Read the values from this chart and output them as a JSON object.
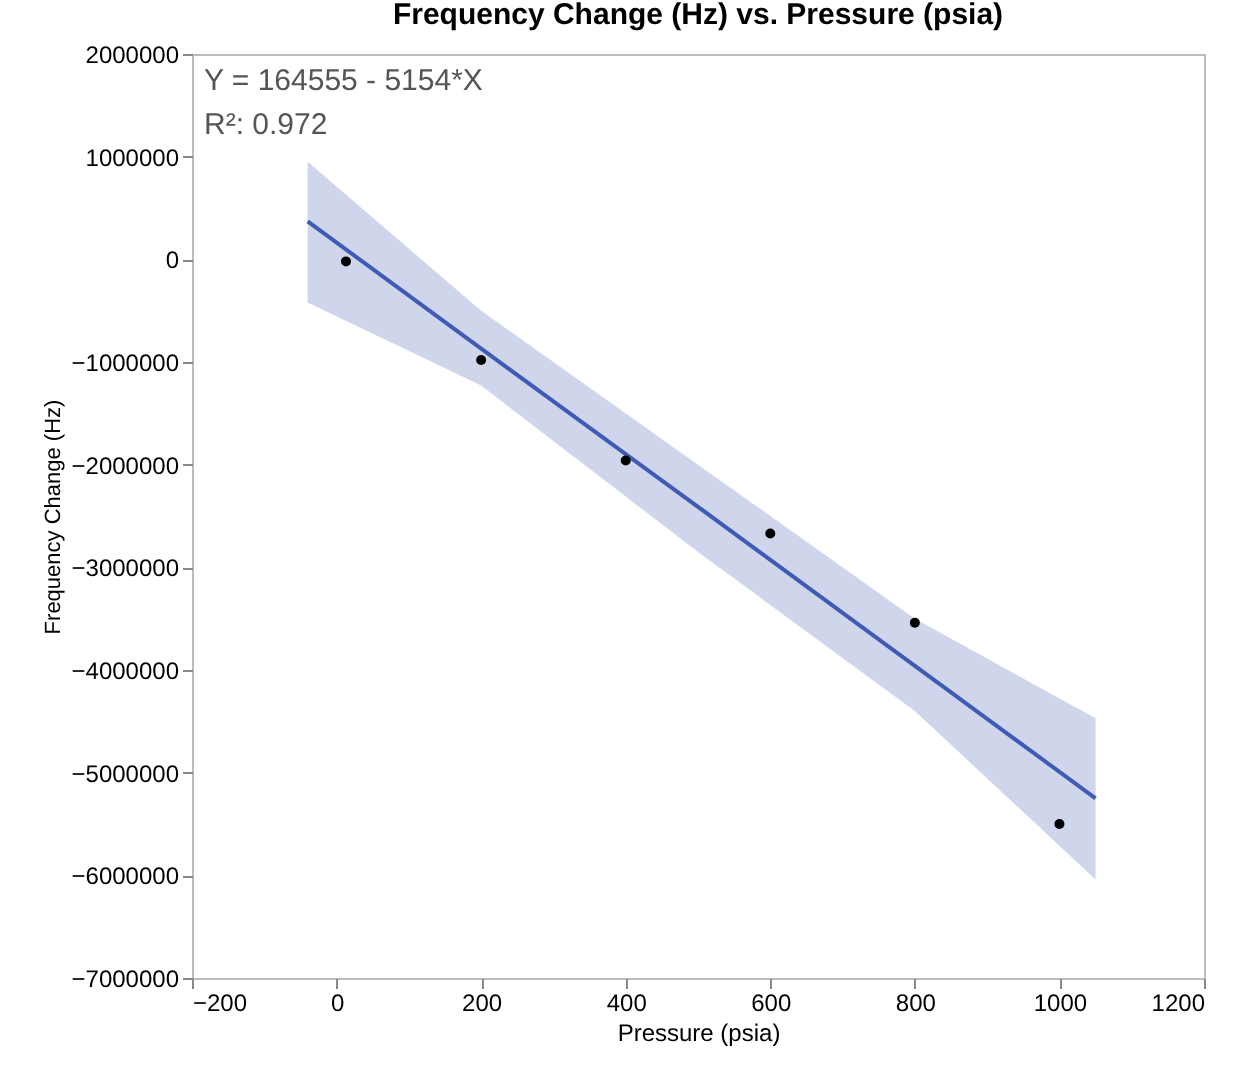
{
  "chart_data": {
    "type": "scatter",
    "title": "Frequency Change (Hz) vs. Pressure (psia)",
    "xlabel": "Pressure (psia)",
    "ylabel": "Frequency Change (Hz)",
    "annotations": [
      "Y = 164555 - 5154*X",
      "R²: 0.972"
    ],
    "xlim": [
      -200,
      1200
    ],
    "xticks": [
      -200,
      0,
      200,
      400,
      600,
      800,
      1000,
      1200
    ],
    "ylim": [
      -7000000,
      2000000
    ],
    "yticks": [
      -7000000,
      -6000000,
      -5000000,
      -4000000,
      -3000000,
      -2000000,
      -1000000,
      0,
      1000000,
      2000000
    ],
    "grid": false,
    "marker": "circle",
    "series": [
      {
        "type": "line",
        "marker": "none",
        "color": "#3f5bb5",
        "x": [
          -40,
          200,
          500,
          800,
          1050
        ],
        "values": [
          370000,
          -870000,
          -2410000,
          -3960000,
          -5250000
        ],
        "lower": [
          -420000,
          -1230000,
          -2850000,
          -4400000,
          -6040000
        ],
        "upper": [
          950000,
          -500000,
          -2000000,
          -3500000,
          -4470000
        ]
      },
      {
        "color": "#000000",
        "x": [
          13,
          200,
          400,
          600,
          800,
          1000
        ],
        "values": [
          -20000,
          -980000,
          -1960000,
          -2670000,
          -3540000,
          -5500000
        ]
      }
    ]
  }
}
